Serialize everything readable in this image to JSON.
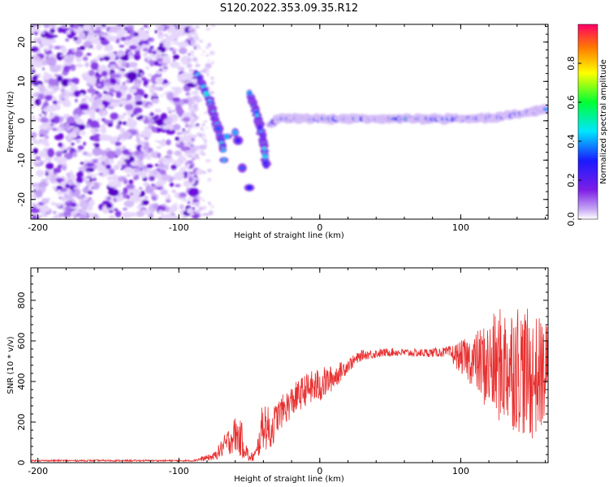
{
  "figure_title": "S120.2022.353.09.35.R12",
  "chart_data": [
    {
      "type": "heatmap",
      "xlabel": "Height of straight line (km)",
      "ylabel": "Frequency (Hz)",
      "xlim": [
        -205,
        162
      ],
      "ylim": [
        -25,
        24.5
      ],
      "x_ticks": [
        -200,
        -100,
        0,
        100
      ],
      "x_tick_labels": [
        "-200",
        "-100",
        "0",
        "100"
      ],
      "y_ticks": [
        -20,
        -10,
        0,
        10,
        20
      ],
      "y_tick_labels": [
        "-20",
        "-10",
        "0",
        "10",
        "20"
      ],
      "colorbar": {
        "label": "Normalized spectral amplitude",
        "range": [
          0,
          1
        ],
        "ticks": [
          0.0,
          0.2,
          0.4,
          0.6,
          0.8
        ],
        "tick_labels": [
          "0.0",
          "0.2",
          "0.4",
          "0.6",
          "0.8"
        ]
      },
      "features": {
        "noise_region_x": [
          -205,
          -87
        ],
        "descending_track_1": [
          [
            -87,
            12
          ],
          [
            -78,
            5
          ],
          [
            -72,
            -2
          ],
          [
            -68,
            -8
          ]
        ],
        "descending_track_2": [
          [
            -50,
            7
          ],
          [
            -45,
            2
          ],
          [
            -40,
            -5
          ],
          [
            -38,
            -12
          ]
        ],
        "scattered_blobs": [
          [
            -72,
            -2
          ],
          [
            -66,
            -4
          ],
          [
            -60,
            -3
          ],
          [
            -58,
            -5
          ],
          [
            -55,
            -12
          ],
          [
            -50,
            -17
          ],
          [
            -68,
            -10
          ]
        ],
        "carrier_line": [
          [
            -35,
            -1
          ],
          [
            -30,
            0.5
          ],
          [
            0,
            0.5
          ],
          [
            50,
            0.5
          ],
          [
            100,
            0.5
          ],
          [
            130,
            1
          ],
          [
            162,
            3
          ]
        ]
      }
    },
    {
      "type": "line",
      "xlabel": "Height of straight line (km)",
      "ylabel": "SNR (10 * v/v)",
      "xlim": [
        -205,
        162
      ],
      "ylim": [
        0,
        960
      ],
      "x_ticks": [
        -200,
        -100,
        0,
        100
      ],
      "x_tick_labels": [
        "-200",
        "-100",
        "0",
        "100"
      ],
      "y_ticks": [
        0,
        200,
        400,
        600,
        800
      ],
      "y_tick_labels": [
        "0",
        "200",
        "400",
        "600",
        "800"
      ],
      "series": [
        {
          "name": "SNR",
          "color": "#e83030",
          "envelope_x": [
            -205,
            -90,
            -75,
            -60,
            -55,
            -50,
            -45,
            -40,
            -35,
            -30,
            -20,
            -10,
            0,
            10,
            20,
            30,
            50,
            70,
            90,
            100,
            110,
            120,
            130,
            140,
            150,
            162
          ],
          "envelope_mean": [
            10,
            10,
            30,
            140,
            110,
            20,
            40,
            200,
            150,
            230,
            300,
            360,
            380,
            420,
            480,
            530,
            545,
            540,
            545,
            520,
            500,
            470,
            480,
            480,
            420,
            450
          ],
          "envelope_noise": [
            4,
            4,
            20,
            90,
            90,
            15,
            40,
            130,
            100,
            80,
            80,
            80,
            90,
            60,
            35,
            25,
            20,
            20,
            25,
            80,
            140,
            240,
            300,
            330,
            320,
            250
          ]
        }
      ]
    }
  ]
}
